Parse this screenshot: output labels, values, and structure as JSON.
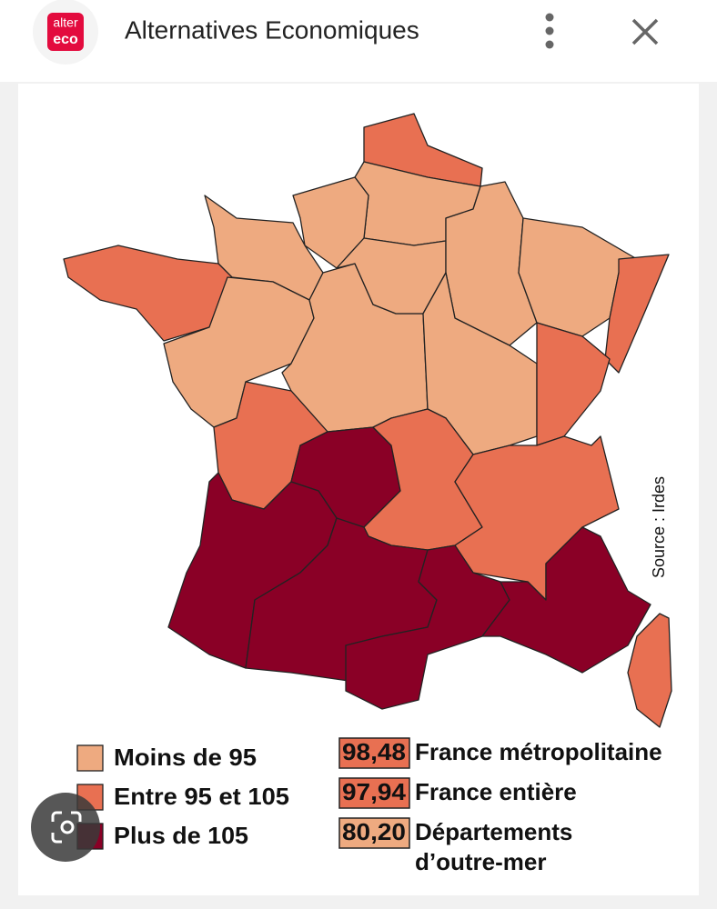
{
  "header": {
    "logo": [
      "alter",
      "eco"
    ],
    "title": "Alternatives Economiques"
  },
  "map": {
    "source": "Source : Irdes",
    "legend": [
      "Moins de 95",
      "Entre 95 et 105",
      "Plus de 105"
    ],
    "stats": [
      {
        "value": "98,48",
        "label": [
          "France métropolitaine"
        ]
      },
      {
        "value": "97,94",
        "label": [
          "France entière"
        ]
      },
      {
        "value": "80,20",
        "label": [
          "Départements",
          "d’outre-mer"
        ]
      }
    ]
  }
}
